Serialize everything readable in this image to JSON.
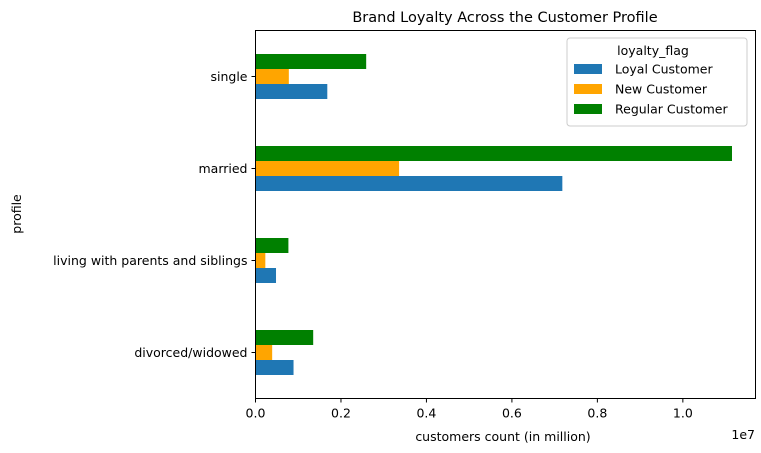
{
  "chart_data": {
    "type": "bar",
    "orientation": "horizontal",
    "title": "Brand Loyalty Across the Customer Profile",
    "xlabel": "customers count (in million)",
    "ylabel": "profile",
    "x_offset_label": "1e7",
    "xlim": [
      0,
      11700000
    ],
    "x_ticks": [
      0,
      2000000,
      4000000,
      6000000,
      8000000,
      10000000
    ],
    "x_tick_labels": [
      "0.0",
      "0.2",
      "0.4",
      "0.6",
      "0.8",
      "1.0"
    ],
    "categories": [
      "divorced/widowed",
      "living with parents and siblings",
      "married",
      "single"
    ],
    "legend": {
      "title": "loyalty_flag",
      "position": "upper-right"
    },
    "grid": false,
    "series": [
      {
        "name": "Loyal Customer",
        "color": "#1f77b4",
        "values": [
          890000,
          480000,
          7180000,
          1680000
        ]
      },
      {
        "name": "New Customer",
        "color": "#ffa500",
        "values": [
          390000,
          230000,
          3360000,
          780000
        ]
      },
      {
        "name": "Regular Customer",
        "color": "#008000",
        "values": [
          1350000,
          770000,
          11150000,
          2590000
        ]
      }
    ]
  }
}
